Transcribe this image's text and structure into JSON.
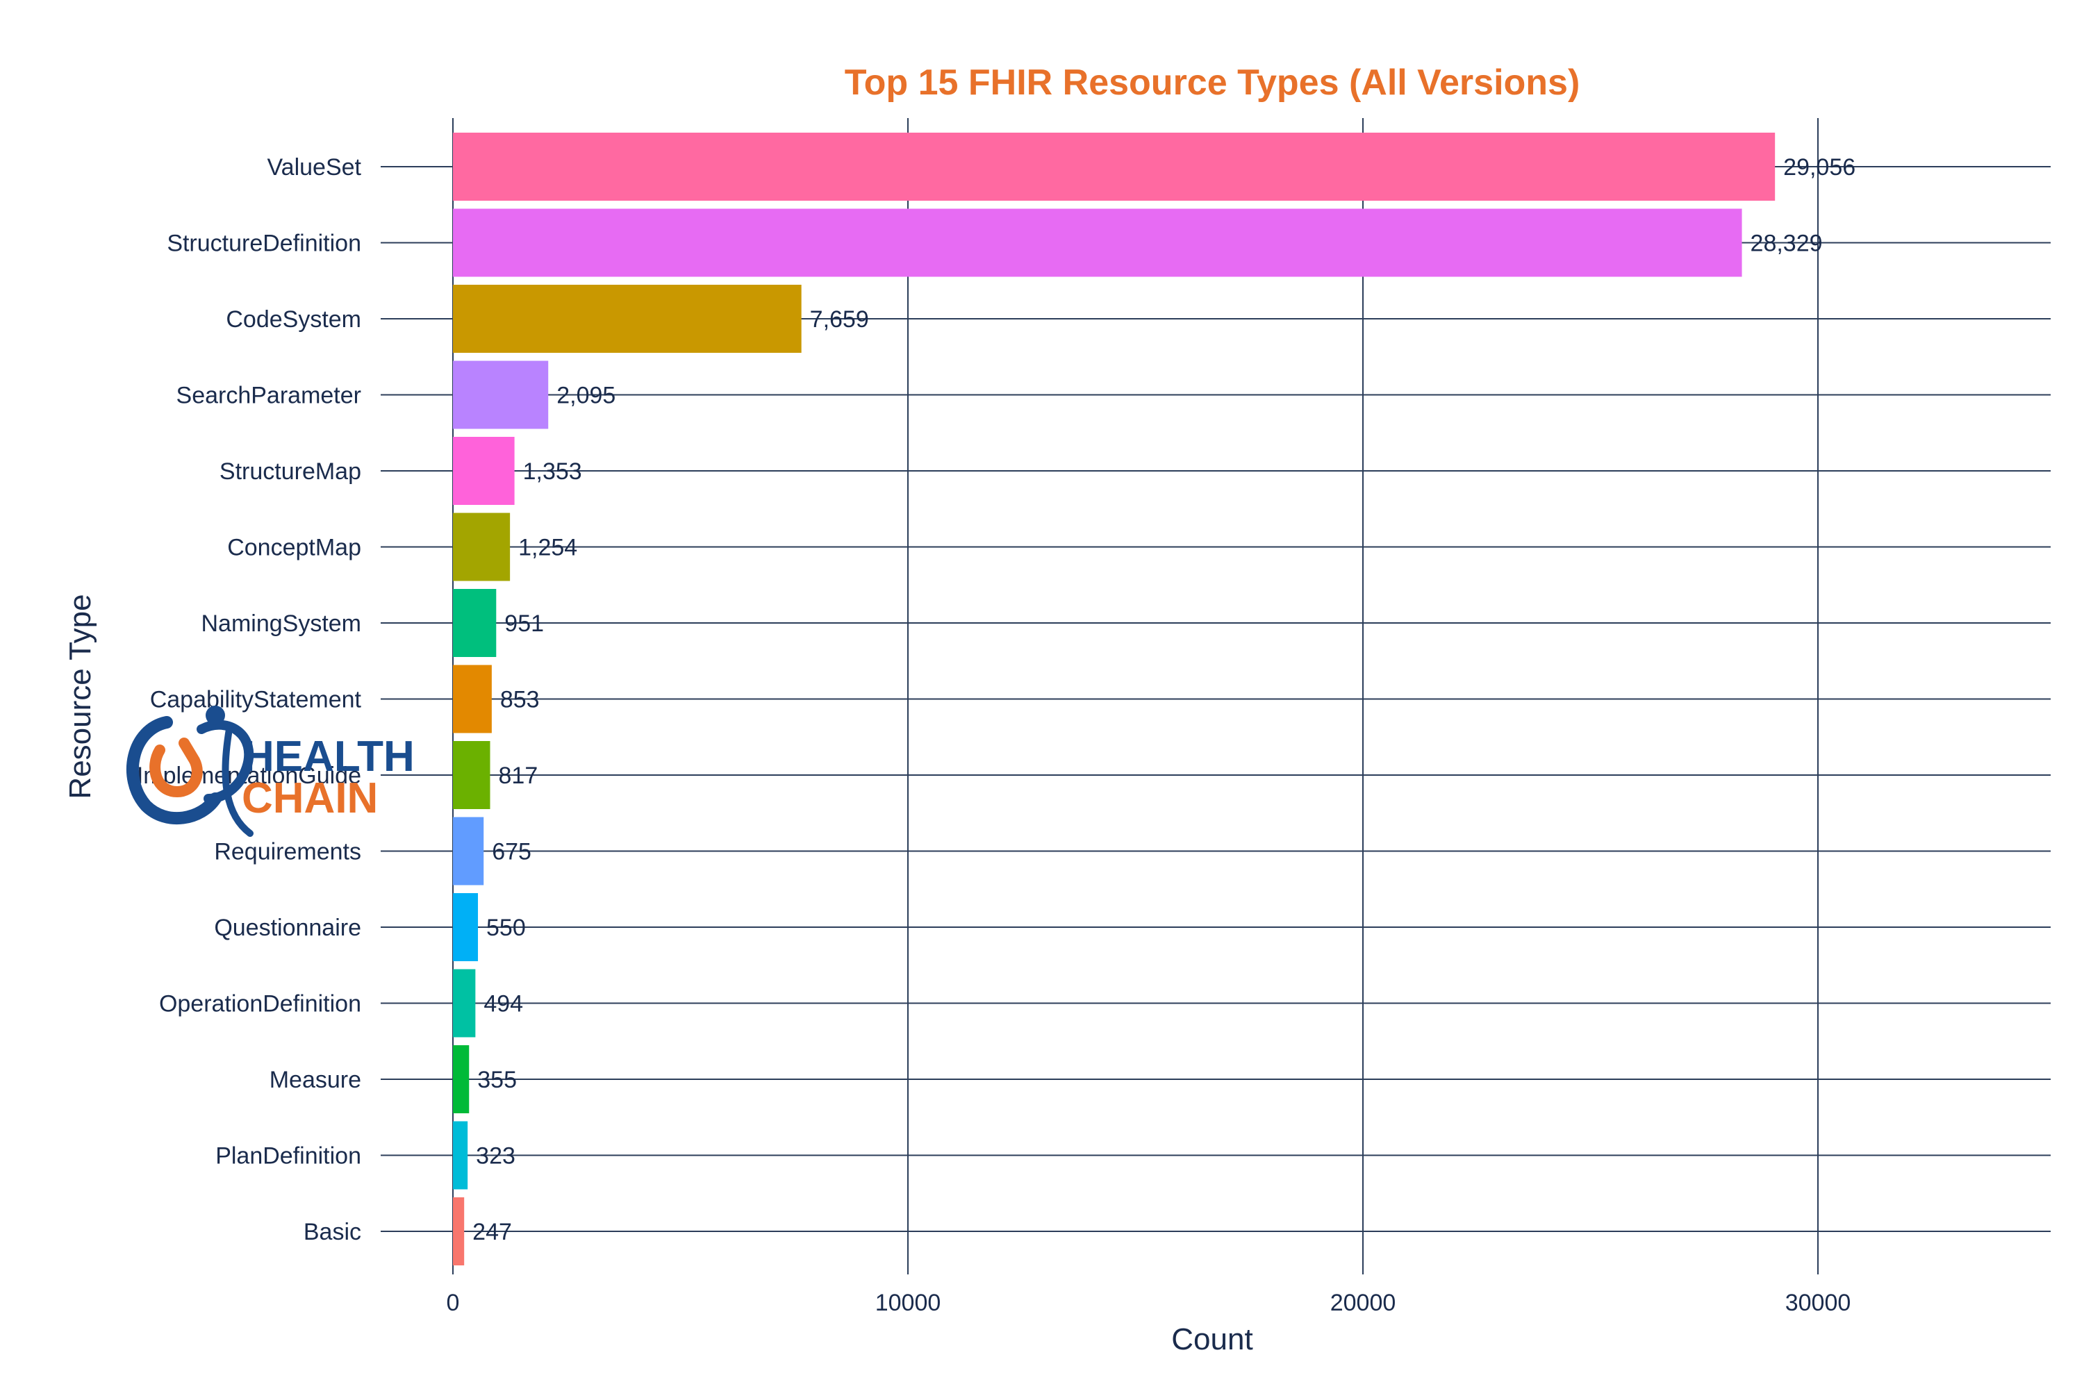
{
  "chart_data": {
    "type": "bar",
    "orientation": "horizontal",
    "title": "Top 15 FHIR Resource Types (All Versions)",
    "xlabel": "Count",
    "ylabel": "Resource Type",
    "xlim": [
      0,
      35000
    ],
    "xticks": [
      0,
      10000,
      20000,
      30000
    ],
    "xtick_labels": [
      "0",
      "10000",
      "20000",
      "30000"
    ],
    "grid": true,
    "categories": [
      "ValueSet",
      "StructureDefinition",
      "CodeSystem",
      "SearchParameter",
      "StructureMap",
      "ConceptMap",
      "NamingSystem",
      "CapabilityStatement",
      "ImplementationGuide",
      "Requirements",
      "Questionnaire",
      "OperationDefinition",
      "Measure",
      "PlanDefinition",
      "Basic"
    ],
    "values": [
      29056,
      28329,
      7659,
      2095,
      1353,
      1254,
      951,
      853,
      817,
      675,
      550,
      494,
      355,
      323,
      247
    ],
    "value_labels": [
      "29,056",
      "28,329",
      "7,659",
      "2,095",
      "1,353",
      "1,254",
      "951",
      "853",
      "817",
      "675",
      "550",
      "494",
      "355",
      "323",
      "247"
    ],
    "colors": [
      "#FF69A1",
      "#E76BF3",
      "#C99800",
      "#B983FF",
      "#FF62DA",
      "#A3A500",
      "#00BF7D",
      "#E38900",
      "#6BB100",
      "#619CFF",
      "#00B0F6",
      "#00C1A3",
      "#00BA38",
      "#00BCD8",
      "#F8766D"
    ]
  },
  "logo": {
    "name": "health-chain-logo",
    "line1": "HEALTH",
    "line2": "CHAIN",
    "color1": "#1a4d8f",
    "color2": "#e8712a"
  },
  "theme": {
    "title_color": "#e8712a",
    "text_color": "#1a2b4c",
    "grid_color": "#2c3e5a"
  }
}
